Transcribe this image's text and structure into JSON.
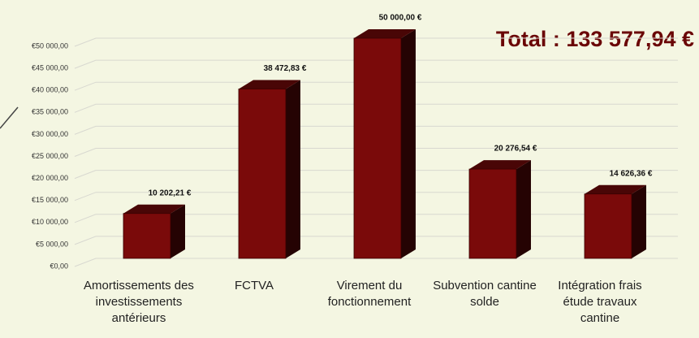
{
  "chart_data": {
    "type": "bar3d",
    "title": "Total : 133 577,94 €",
    "categories": [
      "Amortissements des investissements antérieurs",
      "FCTVA",
      "Virement du fonctionnement",
      "Subvention cantine solde",
      "Intégration frais étude travaux cantine"
    ],
    "values": [
      10202.21,
      38472.83,
      50000,
      20276.54,
      14626.36
    ],
    "value_labels": [
      "10 202,21 €",
      "38 472,83 €",
      "50 000,00 €",
      "20 276,54 €",
      "14 626,36 €"
    ],
    "color": "#7a0a0a",
    "ylim": [
      0,
      50000
    ],
    "yticks": [
      {
        "value": 0,
        "label": "€0,00"
      },
      {
        "value": 5000,
        "label": "€5 000,00"
      },
      {
        "value": 10000,
        "label": "€10 000,00"
      },
      {
        "value": 15000,
        "label": "€15 000,00"
      },
      {
        "value": 20000,
        "label": "€20 000,00"
      },
      {
        "value": 25000,
        "label": "€25 000,00"
      },
      {
        "value": 30000,
        "label": "€30 000,00"
      },
      {
        "value": 35000,
        "label": "€35 000,00"
      },
      {
        "value": 40000,
        "label": "€40 000,00"
      },
      {
        "value": 45000,
        "label": "€45 000,00"
      },
      {
        "value": 50000,
        "label": "€50 000,00"
      }
    ],
    "grid": true
  }
}
